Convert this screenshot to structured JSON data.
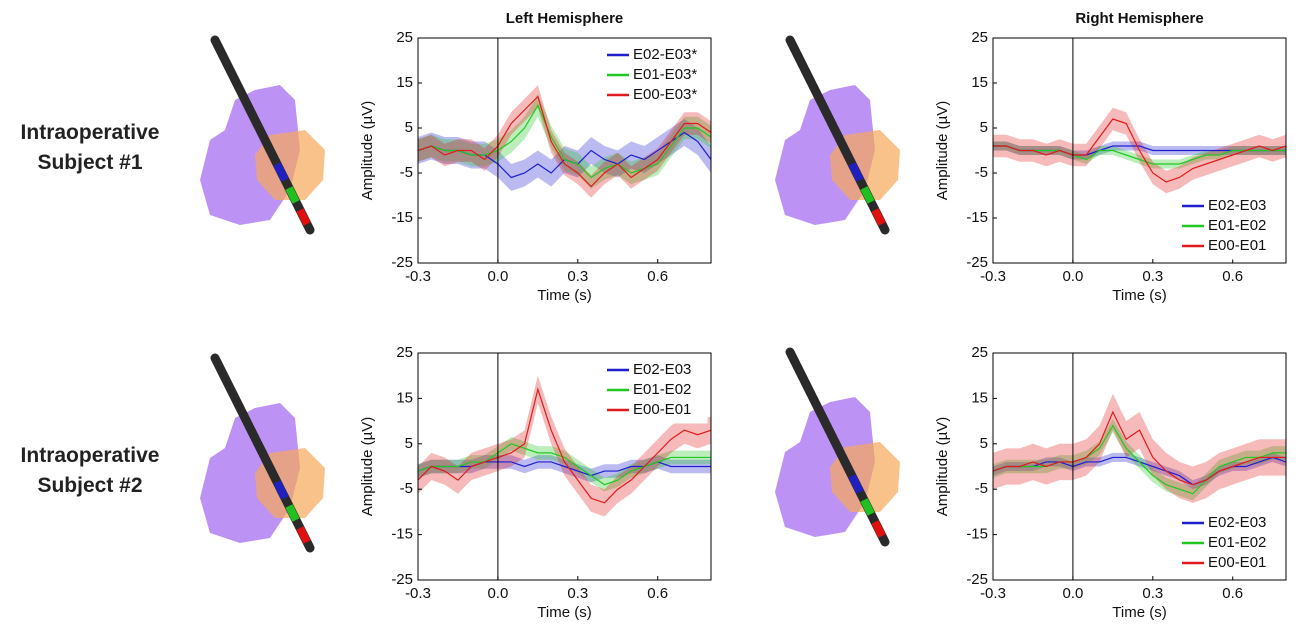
{
  "figure": {
    "row_labels": [
      "Intraoperative Subject #1",
      "Intraoperative Subject #2"
    ]
  },
  "chart_data": [
    {
      "type": "line",
      "title": "Left Hemisphere",
      "xlabel": "Time (s)",
      "ylabel": "Amplitude (µV)",
      "x": [
        -0.3,
        -0.25,
        -0.2,
        -0.15,
        -0.1,
        -0.05,
        0,
        0.05,
        0.1,
        0.15,
        0.2,
        0.25,
        0.3,
        0.35,
        0.4,
        0.45,
        0.5,
        0.55,
        0.6,
        0.65,
        0.7,
        0.75,
        0.8
      ],
      "xlim": [
        -0.3,
        0.8
      ],
      "xticks": [
        -0.3,
        {
          "value": 0,
          "label": "0.0"
        },
        0.3,
        0.6
      ],
      "ylim": [
        -25,
        25
      ],
      "yticks": [
        -25,
        -15,
        -5,
        5,
        15,
        25
      ],
      "vline": 0,
      "legend": "upper right",
      "series": [
        {
          "name": "E02-E03*",
          "color": "#1f1fd0",
          "error": 3,
          "values": [
            0,
            1,
            0,
            0,
            -1,
            -1,
            -3,
            -6,
            -5,
            -3,
            -5,
            -2,
            -3,
            0,
            -2,
            -3,
            -1,
            -2,
            0,
            2,
            4,
            2,
            -2
          ]
        },
        {
          "name": "E01-E03*",
          "color": "#22c822",
          "error": 2.5,
          "values": [
            0,
            1,
            0,
            0,
            -1,
            -1,
            0,
            2,
            5,
            10,
            3,
            -2,
            -3,
            -6,
            -4,
            -3,
            -5,
            -4,
            -3,
            1,
            5,
            5,
            3
          ]
        },
        {
          "name": "E00-E03*",
          "color": "#e01b1b",
          "error": 2.5,
          "values": [
            0,
            1,
            -1,
            0,
            0,
            -2,
            1,
            6,
            9,
            12,
            2,
            -3,
            -5,
            -8,
            -5,
            -3,
            -6,
            -4,
            -2,
            2,
            6,
            6,
            4
          ]
        }
      ]
    },
    {
      "type": "line",
      "title": "Right Hemisphere",
      "xlabel": "Time (s)",
      "ylabel": "Amplitude (µV)",
      "x": [
        -0.3,
        -0.25,
        -0.2,
        -0.15,
        -0.1,
        -0.05,
        0,
        0.05,
        0.1,
        0.15,
        0.2,
        0.25,
        0.3,
        0.35,
        0.4,
        0.45,
        0.5,
        0.55,
        0.6,
        0.65,
        0.7,
        0.75,
        0.8
      ],
      "xlim": [
        -0.3,
        0.8
      ],
      "xticks": [
        -0.3,
        {
          "value": 0,
          "label": "0.0"
        },
        0.3,
        0.6
      ],
      "ylim": [
        -25,
        25
      ],
      "yticks": [
        -25,
        -15,
        -5,
        5,
        15,
        25
      ],
      "vline": 0,
      "legend": "lower right",
      "series": [
        {
          "name": "E02-E03",
          "color": "#1f1fd0",
          "error": 1,
          "values": [
            1,
            1,
            0,
            0,
            0,
            0,
            -1,
            -1,
            0,
            1,
            1,
            1,
            0,
            0,
            0,
            0,
            0,
            0,
            0,
            0,
            0,
            0,
            0
          ]
        },
        {
          "name": "E01-E02",
          "color": "#22c822",
          "error": 1,
          "values": [
            1,
            1,
            0,
            0,
            0,
            0,
            -1,
            -2,
            0,
            0,
            -1,
            -2,
            -3,
            -3,
            -3,
            -2,
            -1,
            -1,
            0,
            0,
            0,
            0,
            0
          ]
        },
        {
          "name": "E00-E01",
          "color": "#e01b1b",
          "error": 2.5,
          "values": [
            1,
            1,
            0,
            0,
            -1,
            0,
            -1,
            -1,
            3,
            7,
            6,
            0,
            -5,
            -7,
            -6,
            -4,
            -3,
            -2,
            -1,
            0,
            1,
            0,
            1
          ]
        }
      ]
    },
    {
      "type": "line",
      "xlabel": "Time (s)",
      "ylabel": "Amplitude (µV)",
      "x": [
        -0.3,
        -0.25,
        -0.2,
        -0.15,
        -0.1,
        -0.05,
        0,
        0.05,
        0.1,
        0.15,
        0.2,
        0.25,
        0.3,
        0.35,
        0.4,
        0.45,
        0.5,
        0.55,
        0.6,
        0.65,
        0.7,
        0.75,
        0.8
      ],
      "xlim": [
        -0.3,
        0.8
      ],
      "xticks": [
        -0.3,
        {
          "value": 0,
          "label": "0.0"
        },
        0.3,
        0.6
      ],
      "ylim": [
        -25,
        25
      ],
      "yticks": [
        -25,
        -15,
        -5,
        5,
        15,
        25
      ],
      "vline": 0,
      "legend": "upper right",
      "series": [
        {
          "name": "E02-E03",
          "color": "#1f1fd0",
          "error": 1.5,
          "values": [
            -1,
            0,
            0,
            0,
            0,
            1,
            1,
            1,
            0,
            1,
            1,
            0,
            -1,
            -2,
            -1,
            -1,
            0,
            0,
            1,
            0,
            0,
            0,
            0
          ]
        },
        {
          "name": "E01-E02",
          "color": "#22c822",
          "error": 1.5,
          "values": [
            -1,
            0,
            0,
            0,
            1,
            1,
            3,
            5,
            4,
            3,
            3,
            2,
            0,
            -2,
            -4,
            -3,
            -1,
            0,
            1,
            2,
            2,
            2,
            2
          ]
        },
        {
          "name": "E00-E01",
          "color": "#e01b1b",
          "error": 3,
          "values": [
            -3,
            0,
            -1,
            -3,
            0,
            1,
            2,
            3,
            5,
            17,
            8,
            1,
            -3,
            -7,
            -8,
            -5,
            -3,
            0,
            3,
            6,
            8,
            7,
            8
          ]
        }
      ]
    },
    {
      "type": "line",
      "xlabel": "Time (s)",
      "ylabel": "Amplitude (µV)",
      "x": [
        -0.3,
        -0.25,
        -0.2,
        -0.15,
        -0.1,
        -0.05,
        0,
        0.05,
        0.1,
        0.15,
        0.2,
        0.25,
        0.3,
        0.35,
        0.4,
        0.45,
        0.5,
        0.55,
        0.6,
        0.65,
        0.7,
        0.75,
        0.8
      ],
      "xlim": [
        -0.3,
        0.8
      ],
      "xticks": [
        -0.3,
        {
          "value": 0,
          "label": "0.0"
        },
        0.3,
        0.6
      ],
      "ylim": [
        -25,
        25
      ],
      "yticks": [
        -25,
        -15,
        -5,
        5,
        15,
        25
      ],
      "vline": 0,
      "legend": "lower right",
      "series": [
        {
          "name": "E02-E03",
          "color": "#1f1fd0",
          "error": 1,
          "values": [
            -1,
            0,
            0,
            0,
            1,
            1,
            0,
            1,
            1,
            2,
            2,
            1,
            0,
            -1,
            -2,
            -4,
            -3,
            -1,
            0,
            0,
            1,
            2,
            1
          ]
        },
        {
          "name": "E01-E02",
          "color": "#22c822",
          "error": 1.5,
          "values": [
            -1,
            0,
            0,
            0,
            0,
            1,
            1,
            2,
            4,
            9,
            4,
            1,
            -2,
            -4,
            -5,
            -6,
            -3,
            0,
            1,
            2,
            2,
            3,
            3
          ]
        },
        {
          "name": "E00-E01",
          "color": "#e01b1b",
          "error": 4,
          "values": [
            -1,
            0,
            0,
            1,
            0,
            1,
            1,
            2,
            5,
            12,
            6,
            8,
            2,
            -1,
            -3,
            -4,
            -3,
            -1,
            0,
            1,
            2,
            2,
            2
          ]
        }
      ]
    }
  ]
}
